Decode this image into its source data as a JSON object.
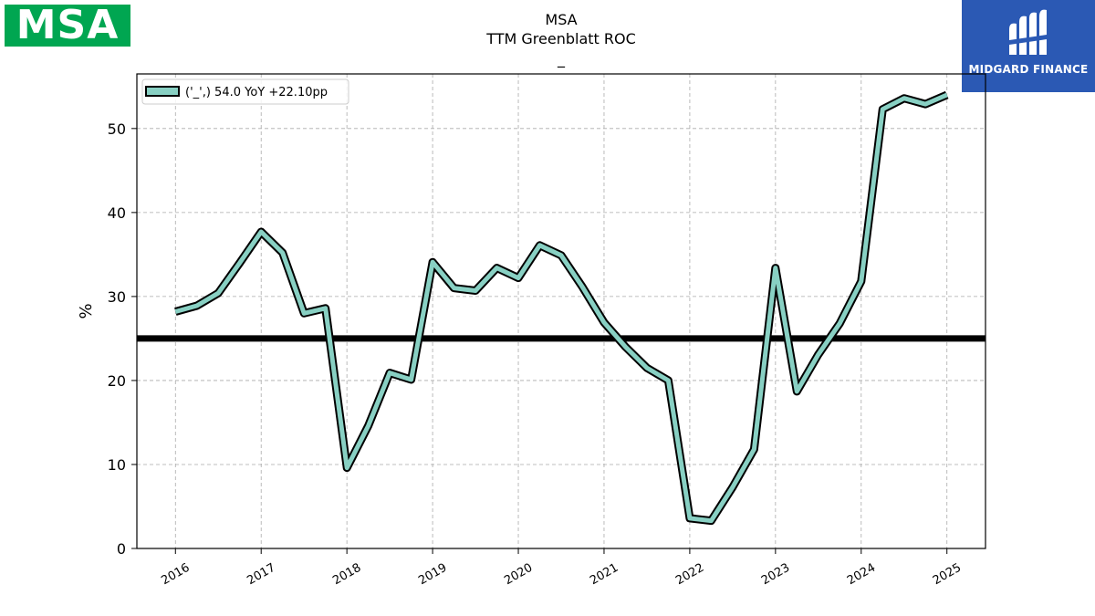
{
  "logos": {
    "left_text": "MSA",
    "left_color": "#00a651",
    "right_text": "MIDGARD FINANCE",
    "right_color": "#2b59b4"
  },
  "chart_data": {
    "type": "line",
    "title": "MSA",
    "subtitle": "TTM Greenblatt ROC",
    "subtitle2": "_",
    "ylabel": "%",
    "xlabel": "",
    "ylim": [
      0,
      56.5
    ],
    "yticks": [
      0,
      10,
      20,
      30,
      40,
      50
    ],
    "xlim": [
      2015.55,
      2025.45
    ],
    "xticks": [
      "2016",
      "2017",
      "2018",
      "2019",
      "2020",
      "2021",
      "2022",
      "2023",
      "2024",
      "2025"
    ],
    "grid": true,
    "legend_position": "top-left",
    "reference_line": 25,
    "reference_line_color": "#000000",
    "series_color": "#88d0c3",
    "series_edge_color": "#000000",
    "series": [
      {
        "name": "('_',) 54.0 YoY +22.10pp",
        "x": [
          2016.0,
          2016.25,
          2016.5,
          2016.75,
          2017.0,
          2017.25,
          2017.5,
          2017.75,
          2018.0,
          2018.25,
          2018.5,
          2018.75,
          2019.0,
          2019.25,
          2019.5,
          2019.75,
          2020.0,
          2020.25,
          2020.5,
          2020.75,
          2021.0,
          2021.25,
          2021.5,
          2021.75,
          2022.0,
          2022.25,
          2022.5,
          2022.75,
          2023.0,
          2023.25,
          2023.5,
          2023.75,
          2024.0,
          2024.25,
          2024.5,
          2024.75,
          2025.0
        ],
        "values": [
          28.2,
          28.9,
          30.4,
          34.0,
          37.7,
          35.2,
          28.0,
          28.6,
          9.6,
          14.6,
          20.9,
          20.1,
          34.1,
          31.0,
          30.7,
          33.4,
          32.2,
          36.1,
          34.9,
          31.1,
          26.9,
          24.0,
          21.5,
          20.0,
          3.6,
          3.3,
          7.3,
          11.8,
          33.4,
          18.7,
          23.1,
          26.8,
          31.8,
          52.3,
          53.6,
          52.9,
          54.0
        ]
      }
    ]
  }
}
